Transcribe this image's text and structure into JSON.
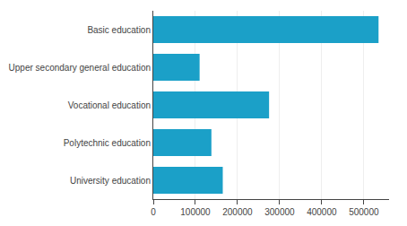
{
  "chart_data": {
    "type": "bar",
    "orientation": "horizontal",
    "categories": [
      "Basic education",
      "Upper secondary general education",
      "Vocational education",
      "Polytechnic education",
      "University education"
    ],
    "values": [
      535000,
      110000,
      275000,
      138000,
      165000
    ],
    "color": "#1ba0c8",
    "xlim": [
      0,
      560000
    ],
    "xticks": [
      0,
      100000,
      200000,
      300000,
      400000,
      500000
    ],
    "grid": true
  }
}
